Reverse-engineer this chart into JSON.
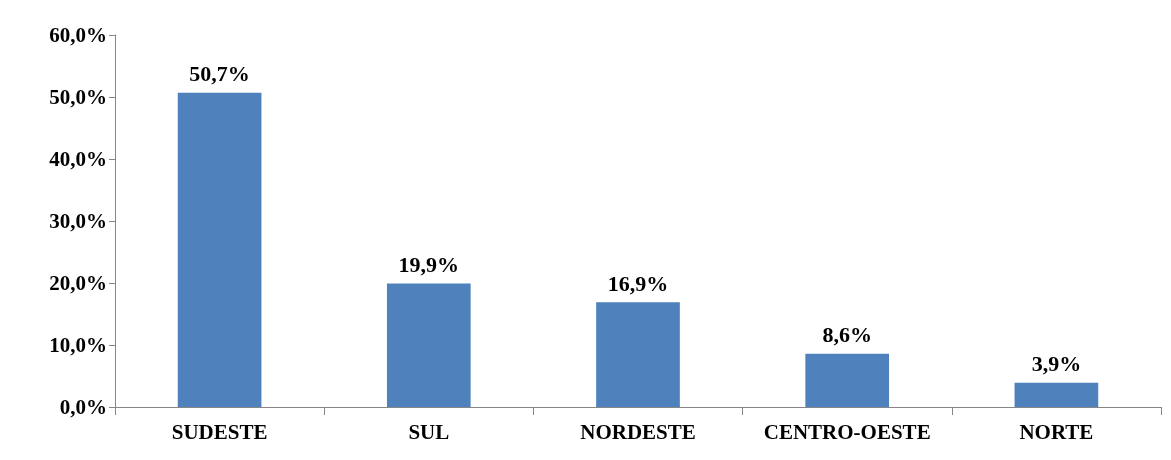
{
  "chart_data": {
    "type": "bar",
    "categories": [
      "SUDESTE",
      "SUL",
      "NORDESTE",
      "CENTRO-OESTE",
      "NORTE"
    ],
    "values": [
      50.7,
      19.9,
      16.9,
      8.6,
      3.9
    ],
    "value_labels": [
      "50,7%",
      "19,9%",
      "16,9%",
      "8,6%",
      "3,9%"
    ],
    "color": "#4f81bd",
    "ylim": [
      0,
      60
    ],
    "yticks": [
      {
        "value": 0,
        "label": "0,0%"
      },
      {
        "value": 10,
        "label": "10,0%"
      },
      {
        "value": 20,
        "label": "20,0%"
      },
      {
        "value": 30,
        "label": "30,0%"
      },
      {
        "value": 40,
        "label": "40,0%"
      },
      {
        "value": 50,
        "label": "50,0%"
      },
      {
        "value": 60,
        "label": "60,0%"
      }
    ]
  }
}
